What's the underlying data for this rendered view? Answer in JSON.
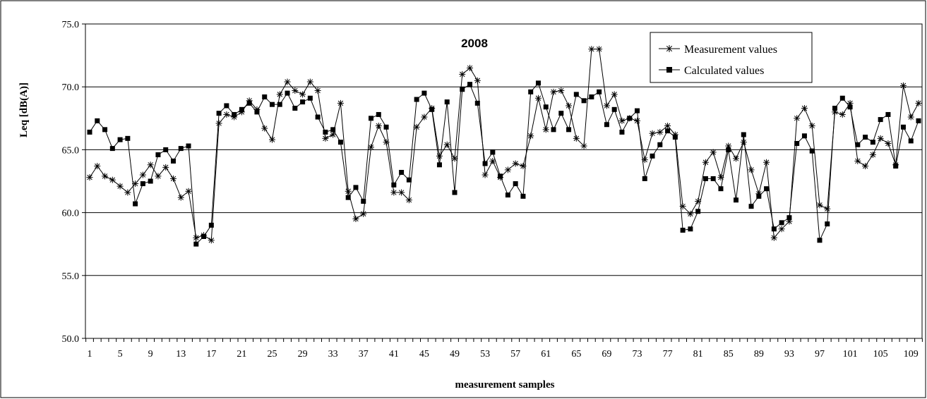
{
  "chart_data": {
    "type": "line",
    "title": "2008",
    "xlabel": "measurement samples",
    "ylabel": "Leq [dB(A)]",
    "ylim": [
      50,
      75
    ],
    "yticks": [
      "50.0",
      "55.0",
      "60.0",
      "65.0",
      "70.0",
      "75.0"
    ],
    "ytick_values": [
      50,
      55,
      60,
      65,
      70,
      75
    ],
    "x_tick_labels": [
      "1",
      "5",
      "9",
      "13",
      "17",
      "21",
      "25",
      "29",
      "33",
      "37",
      "41",
      "45",
      "49",
      "53",
      "57",
      "61",
      "65",
      "69",
      "73",
      "77",
      "81",
      "85",
      "89",
      "93",
      "97",
      "101",
      "105",
      "109"
    ],
    "x_tick_values": [
      1,
      5,
      9,
      13,
      17,
      21,
      25,
      29,
      33,
      37,
      41,
      45,
      49,
      53,
      57,
      61,
      65,
      69,
      73,
      77,
      81,
      85,
      89,
      93,
      97,
      101,
      105,
      109
    ],
    "x_range": [
      1,
      110
    ],
    "grid": "horizontal major",
    "legend_position": "top-right",
    "series": [
      {
        "name": "Measurement values",
        "marker": "asterisk",
        "color": "#000000",
        "values": [
          62.8,
          63.7,
          62.9,
          62.6,
          62.1,
          61.6,
          62.3,
          63.0,
          63.8,
          62.9,
          63.6,
          62.7,
          61.2,
          61.7,
          58.0,
          58.2,
          57.8,
          67.1,
          67.8,
          67.6,
          68.0,
          68.9,
          68.2,
          66.7,
          65.8,
          69.4,
          70.4,
          69.7,
          69.4,
          70.4,
          69.7,
          65.9,
          66.2,
          68.7,
          61.7,
          59.5,
          59.9,
          65.2,
          66.9,
          65.6,
          61.6,
          61.6,
          61.0,
          66.8,
          67.6,
          68.3,
          64.5,
          65.4,
          64.3,
          71.0,
          71.5,
          70.5,
          63.0,
          64.1,
          62.8,
          63.4,
          63.9,
          63.7,
          66.1,
          69.1,
          66.6,
          69.6,
          69.7,
          68.5,
          65.9,
          65.3,
          73.0,
          73.0,
          68.5,
          69.4,
          67.3,
          67.5,
          67.3,
          64.2,
          66.3,
          66.4,
          66.9,
          66.2,
          60.5,
          59.9,
          60.9,
          64.0,
          64.8,
          62.8,
          65.3,
          64.3,
          65.6,
          63.4,
          61.5,
          64.0,
          58.0,
          58.7,
          59.3,
          67.5,
          68.3,
          66.9,
          60.6,
          60.3,
          68.0,
          67.8,
          68.7,
          64.1,
          63.7,
          64.6,
          65.9,
          65.5,
          63.8,
          70.1,
          67.6,
          68.7
        ]
      },
      {
        "name": "Calculated values",
        "marker": "square",
        "color": "#000000",
        "values": [
          66.4,
          67.3,
          66.6,
          65.1,
          65.8,
          65.9,
          60.7,
          62.3,
          62.5,
          64.6,
          65.0,
          64.1,
          65.1,
          65.3,
          57.5,
          58.1,
          59.0,
          67.9,
          68.5,
          67.8,
          68.2,
          68.7,
          68.0,
          69.2,
          68.6,
          68.6,
          69.5,
          68.3,
          68.8,
          69.1,
          67.6,
          66.4,
          66.6,
          65.6,
          61.2,
          62.0,
          60.9,
          67.5,
          67.8,
          66.8,
          62.2,
          63.2,
          62.6,
          69.0,
          69.5,
          68.2,
          63.8,
          68.8,
          61.6,
          69.8,
          70.2,
          68.7,
          63.9,
          64.8,
          62.9,
          61.4,
          62.3,
          61.3,
          69.6,
          70.3,
          68.4,
          66.6,
          67.9,
          66.6,
          69.4,
          68.9,
          69.2,
          69.6,
          67.0,
          68.2,
          66.4,
          67.5,
          68.1,
          62.7,
          64.5,
          65.4,
          66.5,
          66.0,
          58.6,
          58.7,
          60.1,
          62.7,
          62.7,
          61.9,
          65.0,
          61.0,
          66.2,
          60.5,
          61.3,
          61.9,
          58.7,
          59.2,
          59.6,
          65.5,
          66.1,
          64.9,
          57.8,
          59.1,
          68.3,
          69.1,
          68.4,
          65.4,
          66.0,
          65.6,
          67.4,
          67.8,
          63.7,
          66.8,
          65.7,
          67.3
        ]
      }
    ]
  }
}
